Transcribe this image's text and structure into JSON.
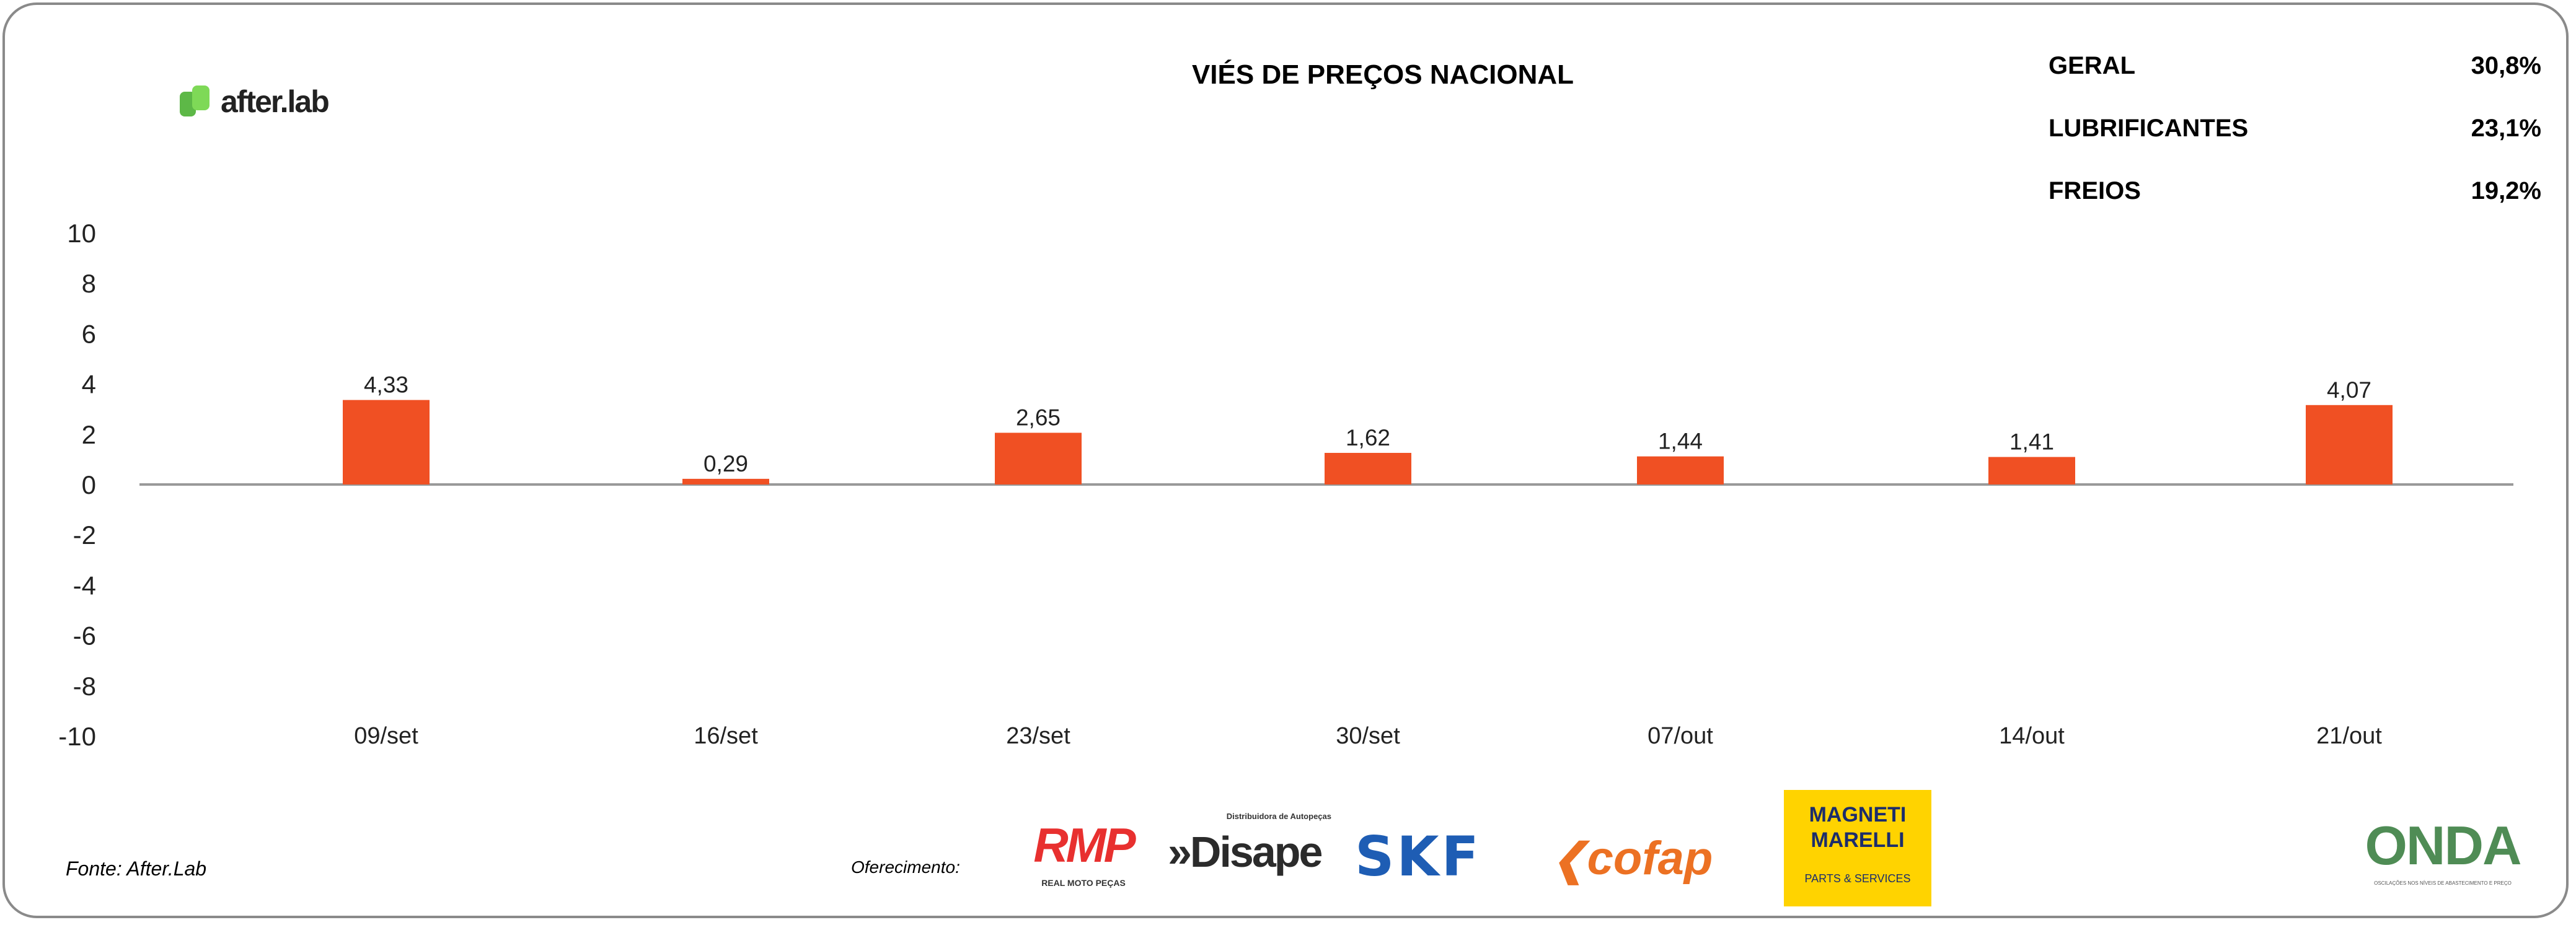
{
  "brand": "after.lab",
  "source": "Fonte: After.Lab",
  "sponsor_label": "Oferecimento:",
  "sponsors": {
    "rmp": "RMP",
    "rmp_sub": "REAL MOTO PEÇAS",
    "disape": "»Disape",
    "disape_sub": "Distribuidora de Autopeças",
    "skf": "SKF",
    "cofap": "cofap",
    "magneti": "MAGNETI MARELLI",
    "magneti_sub": "PARTS & SERVICES",
    "onda": "ONDA",
    "onda_sub": "OSCILAÇÕES NOS NÍVEIS DE ABASTECIMENTO E PREÇO"
  },
  "stats": [
    {
      "label": "GERAL",
      "value": "30,8%"
    },
    {
      "label": "LUBRIFICANTES",
      "value": "23,1%"
    },
    {
      "label": "FREIOS",
      "value": "19,2%"
    }
  ],
  "colors": {
    "bar": "#F05023",
    "axis": "#999999",
    "brand": "#5DB847"
  },
  "chart_data": {
    "type": "bar",
    "title": "VIÉS DE PREÇOS NACIONAL",
    "categories": [
      "09/set",
      "16/set",
      "23/set",
      "30/set",
      "07/out",
      "14/out",
      "21/out"
    ],
    "values": [
      4.33,
      0.29,
      2.65,
      1.62,
      1.44,
      1.41,
      4.07
    ],
    "data_labels": [
      "4,33",
      "0,29",
      "2,65",
      "1,62",
      "1,44",
      "1,41",
      "4,07"
    ],
    "yticks": [
      "10",
      "8",
      "6",
      "4",
      "2",
      "0",
      "-2",
      "-4",
      "-6",
      "-8",
      "-10"
    ],
    "ylim": [
      -10,
      10
    ],
    "xlabel": "",
    "ylabel": "",
    "grid": false
  }
}
